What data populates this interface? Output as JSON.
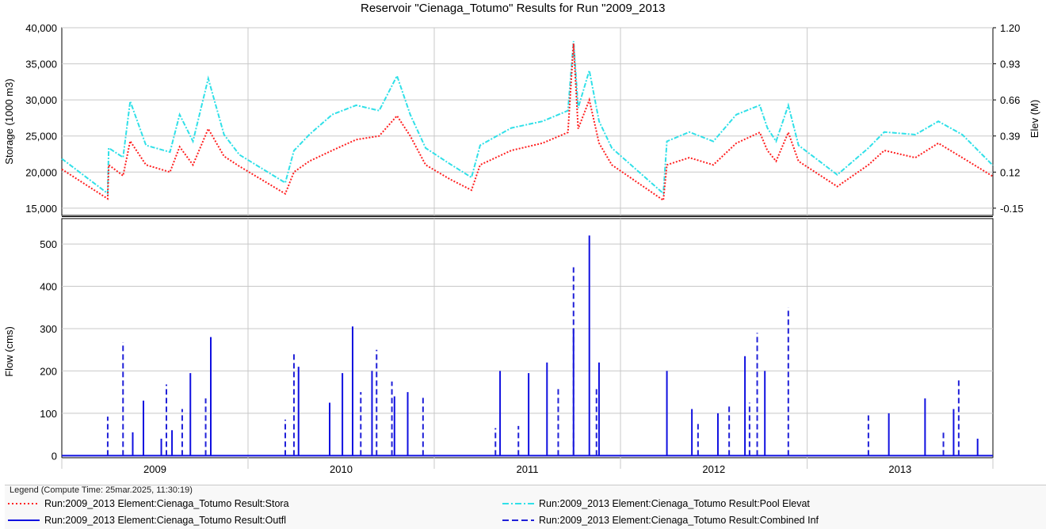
{
  "title": "Reservoir \"Cienaga_Totumo\" Results for Run \"2009_2013",
  "chart_data": [
    {
      "type": "line",
      "panel": "top",
      "ylabel_left": "Storage (1000 m3)",
      "ylabel_right": "Elev (M)",
      "ylim_left": [
        14000,
        40000
      ],
      "yticks_left": [
        15000,
        20000,
        25000,
        30000,
        35000,
        40000
      ],
      "ytick_labels_left": [
        "15,000",
        "20,000",
        "25,000",
        "30,000",
        "35,000",
        "40,000"
      ],
      "ylim_right": [
        -0.204,
        1.2
      ],
      "ytick_labels_right": [
        "-0.15",
        "0.12",
        "0.39",
        "0.66",
        "0.93",
        "1.20"
      ],
      "x_range": [
        "2009-01-01",
        "2013-12-31"
      ],
      "grid": true,
      "series": [
        {
          "name": "Run:2009_2013 Element:Cienaga_Totumo Result:Stora",
          "color": "#ff2020",
          "style": "dotted",
          "axis": "left",
          "points": [
            [
              "2009-01-01",
              20400
            ],
            [
              "2009-04-01",
              16300
            ],
            [
              "2009-04-03",
              21000
            ],
            [
              "2009-05-01",
              19500
            ],
            [
              "2009-05-15",
              24300
            ],
            [
              "2009-06-15",
              21000
            ],
            [
              "2009-08-01",
              20000
            ],
            [
              "2009-08-20",
              23500
            ],
            [
              "2009-09-15",
              21000
            ],
            [
              "2009-10-15",
              26000
            ],
            [
              "2009-11-15",
              22200
            ],
            [
              "2009-12-15",
              20800
            ],
            [
              "2010-03-15",
              17000
            ],
            [
              "2010-04-01",
              20000
            ],
            [
              "2010-05-01",
              21500
            ],
            [
              "2010-06-15",
              23000
            ],
            [
              "2010-08-01",
              24500
            ],
            [
              "2010-09-15",
              25000
            ],
            [
              "2010-10-20",
              27800
            ],
            [
              "2010-11-15",
              25000
            ],
            [
              "2010-12-15",
              21000
            ],
            [
              "2011-02-01",
              19000
            ],
            [
              "2011-03-15",
              17500
            ],
            [
              "2011-04-01",
              21000
            ],
            [
              "2011-06-01",
              23000
            ],
            [
              "2011-08-01",
              24000
            ],
            [
              "2011-09-20",
              25500
            ],
            [
              "2011-10-01",
              37800
            ],
            [
              "2011-10-10",
              26000
            ],
            [
              "2011-11-01",
              30000
            ],
            [
              "2011-11-20",
              24000
            ],
            [
              "2011-12-15",
              21000
            ],
            [
              "2012-03-25",
              16100
            ],
            [
              "2012-04-01",
              21000
            ],
            [
              "2012-05-15",
              22000
            ],
            [
              "2012-07-01",
              21000
            ],
            [
              "2012-08-15",
              24000
            ],
            [
              "2012-09-30",
              25500
            ],
            [
              "2012-10-15",
              23000
            ],
            [
              "2012-11-01",
              21500
            ],
            [
              "2012-11-25",
              25500
            ],
            [
              "2012-12-15",
              21500
            ],
            [
              "2013-03-01",
              18000
            ],
            [
              "2013-05-01",
              21000
            ],
            [
              "2013-06-01",
              23000
            ],
            [
              "2013-08-01",
              22000
            ],
            [
              "2013-09-15",
              24000
            ],
            [
              "2013-11-01",
              22000
            ],
            [
              "2013-12-31",
              19400
            ]
          ]
        },
        {
          "name": "Run:2009_2013 Element:Cienaga_Totumo Result:Pool Elevat",
          "color": "#30e0e8",
          "style": "dash-dot",
          "axis": "right",
          "points": [
            [
              "2009-01-01",
              0.22
            ],
            [
              "2009-04-01",
              -0.04
            ],
            [
              "2009-04-03",
              0.3
            ],
            [
              "2009-05-01",
              0.23
            ],
            [
              "2009-05-15",
              0.65
            ],
            [
              "2009-06-15",
              0.32
            ],
            [
              "2009-08-01",
              0.27
            ],
            [
              "2009-08-20",
              0.55
            ],
            [
              "2009-09-15",
              0.35
            ],
            [
              "2009-10-15",
              0.82
            ],
            [
              "2009-11-15",
              0.4
            ],
            [
              "2009-12-15",
              0.25
            ],
            [
              "2010-03-15",
              0.04
            ],
            [
              "2010-04-01",
              0.28
            ],
            [
              "2010-05-01",
              0.4
            ],
            [
              "2010-06-15",
              0.55
            ],
            [
              "2010-08-01",
              0.62
            ],
            [
              "2010-09-15",
              0.58
            ],
            [
              "2010-10-20",
              0.84
            ],
            [
              "2010-11-15",
              0.55
            ],
            [
              "2010-12-15",
              0.3
            ],
            [
              "2011-02-01",
              0.18
            ],
            [
              "2011-03-15",
              0.08
            ],
            [
              "2011-04-01",
              0.32
            ],
            [
              "2011-06-01",
              0.45
            ],
            [
              "2011-08-01",
              0.5
            ],
            [
              "2011-09-20",
              0.58
            ],
            [
              "2011-10-01",
              1.1
            ],
            [
              "2011-10-10",
              0.6
            ],
            [
              "2011-11-01",
              0.88
            ],
            [
              "2011-11-20",
              0.5
            ],
            [
              "2011-12-15",
              0.3
            ],
            [
              "2012-03-25",
              -0.04
            ],
            [
              "2012-04-01",
              0.35
            ],
            [
              "2012-05-15",
              0.42
            ],
            [
              "2012-07-01",
              0.35
            ],
            [
              "2012-08-15",
              0.55
            ],
            [
              "2012-09-30",
              0.62
            ],
            [
              "2012-10-15",
              0.45
            ],
            [
              "2012-11-01",
              0.35
            ],
            [
              "2012-11-25",
              0.62
            ],
            [
              "2012-12-15",
              0.32
            ],
            [
              "2013-03-01",
              0.1
            ],
            [
              "2013-05-01",
              0.3
            ],
            [
              "2013-06-01",
              0.42
            ],
            [
              "2013-08-01",
              0.4
            ],
            [
              "2013-09-15",
              0.5
            ],
            [
              "2013-11-01",
              0.4
            ],
            [
              "2013-12-31",
              0.17
            ]
          ]
        }
      ]
    },
    {
      "type": "line",
      "panel": "bottom",
      "ylabel": "Flow (cms)",
      "ylim": [
        -5,
        560
      ],
      "yticks": [
        0,
        100,
        200,
        300,
        400,
        500
      ],
      "ytick_labels": [
        "0",
        "100",
        "200",
        "300",
        "400",
        "500"
      ],
      "x_range": [
        "2009-01-01",
        "2013-12-31"
      ],
      "xtick_labels": [
        "2009",
        "2010",
        "2011",
        "2012",
        "2013"
      ],
      "grid": true,
      "series": [
        {
          "name": "Run:2009_2013 Element:Cienaga_Totumo Result:Outfl",
          "color": "#1010e0",
          "style": "solid",
          "spikes": [
            [
              "2009-05-20",
              55
            ],
            [
              "2009-06-10",
              130
            ],
            [
              "2009-07-15",
              40
            ],
            [
              "2009-08-05",
              60
            ],
            [
              "2009-09-10",
              195
            ],
            [
              "2009-10-20",
              280
            ],
            [
              "2010-04-10",
              210
            ],
            [
              "2010-06-10",
              125
            ],
            [
              "2010-07-05",
              195
            ],
            [
              "2010-07-25",
              305
            ],
            [
              "2010-09-01",
              200
            ],
            [
              "2010-10-15",
              140
            ],
            [
              "2010-11-10",
              150
            ],
            [
              "2011-05-10",
              200
            ],
            [
              "2011-07-05",
              195
            ],
            [
              "2011-08-10",
              220
            ],
            [
              "2011-10-01",
              300
            ],
            [
              "2011-11-01",
              520
            ],
            [
              "2011-11-20",
              220
            ],
            [
              "2012-04-01",
              200
            ],
            [
              "2012-05-20",
              110
            ],
            [
              "2012-07-10",
              100
            ],
            [
              "2012-09-01",
              235
            ],
            [
              "2012-10-10",
              200
            ],
            [
              "2013-06-10",
              100
            ],
            [
              "2013-08-20",
              135
            ],
            [
              "2013-10-15",
              110
            ],
            [
              "2013-12-01",
              40
            ]
          ]
        },
        {
          "name": "Run:2009_2013 Element:Cienaga_Totumo Result:Combined Inf",
          "color": "#2020d8",
          "style": "dashed",
          "spikes": [
            [
              "2009-04-01",
              92
            ],
            [
              "2009-05-01",
              268
            ],
            [
              "2009-07-25",
              168
            ],
            [
              "2009-08-25",
              110
            ],
            [
              "2009-10-10",
              135
            ],
            [
              "2010-03-15",
              85
            ],
            [
              "2010-04-01",
              240
            ],
            [
              "2010-08-10",
              150
            ],
            [
              "2010-09-10",
              250
            ],
            [
              "2010-10-10",
              175
            ],
            [
              "2010-12-10",
              140
            ],
            [
              "2011-05-01",
              65
            ],
            [
              "2011-06-15",
              70
            ],
            [
              "2011-09-01",
              160
            ],
            [
              "2011-10-01",
              445
            ],
            [
              "2011-11-15",
              160
            ],
            [
              "2012-06-01",
              80
            ],
            [
              "2012-08-01",
              120
            ],
            [
              "2012-09-10",
              125
            ],
            [
              "2012-09-25",
              290
            ],
            [
              "2012-11-25",
              350
            ],
            [
              "2013-05-01",
              95
            ],
            [
              "2013-09-25",
              60
            ],
            [
              "2013-10-25",
              180
            ]
          ]
        }
      ]
    }
  ],
  "legend": {
    "header": "Legend (Compute Time: 25mar.2025, 11:30:19)",
    "items": [
      {
        "label": "Run:2009_2013 Element:Cienaga_Totumo Result:Stora",
        "color": "#ff2020",
        "style": "dotted"
      },
      {
        "label": "Run:2009_2013 Element:Cienaga_Totumo Result:Pool Elevat",
        "color": "#30e0e8",
        "style": "dash-dot"
      },
      {
        "label": "Run:2009_2013 Element:Cienaga_Totumo Result:Outfl",
        "color": "#1010e0",
        "style": "solid"
      },
      {
        "label": "Run:2009_2013 Element:Cienaga_Totumo Result:Combined Inf",
        "color": "#2020d8",
        "style": "dashed"
      }
    ]
  }
}
